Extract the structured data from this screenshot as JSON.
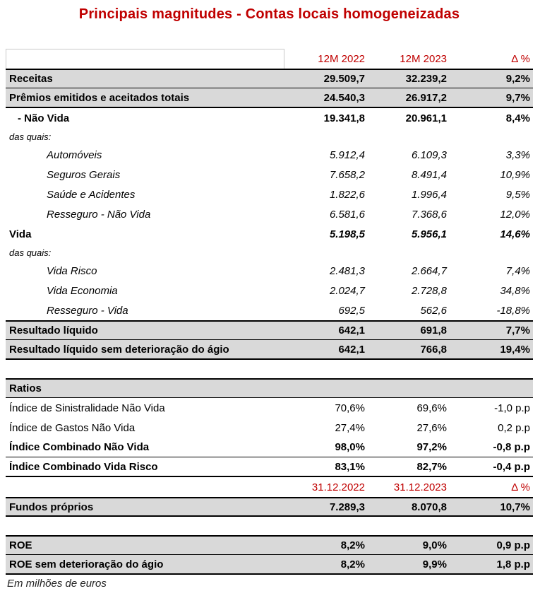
{
  "title": "Principais magnitudes - Contas locais homogeneizadas",
  "footnote": "Em milhões de euros",
  "colors": {
    "accent_red": "#C00000",
    "section_row_bg": "#D9D9D9",
    "border_black": "#000000"
  },
  "table": {
    "column_headers_period_1": [
      "12M 2022",
      "12M 2023",
      "Δ %"
    ],
    "column_headers_period_2": [
      "31.12.2022",
      "31.12.2023",
      "Δ %"
    ],
    "rows": [
      {
        "label": "",
        "v2022": "12M 2022",
        "v2023": "12M 2023",
        "delta": "Δ %",
        "style": "colheader first"
      },
      {
        "label": "Receitas",
        "v2022": "29.509,7",
        "v2023": "32.239,2",
        "delta": "9,2%",
        "style": "section bt2 bb1"
      },
      {
        "label": "Prêmios emitidos e aceitados totais",
        "v2022": "24.540,3",
        "v2023": "26.917,2",
        "delta": "9,7%",
        "style": "section bb2"
      },
      {
        "label": "- Não Vida",
        "v2022": "19.341,8",
        "v2023": "20.961,1",
        "delta": "8,4%",
        "style": "bold ind1"
      },
      {
        "label": "das quais:",
        "v2022": "",
        "v2023": "",
        "delta": "",
        "style": "note"
      },
      {
        "label": "Automóveis",
        "v2022": "5.912,4",
        "v2023": "6.109,3",
        "delta": "3,3%",
        "style": "italic ind2"
      },
      {
        "label": "Seguros Gerais",
        "v2022": "7.658,2",
        "v2023": "8.491,4",
        "delta": "10,9%",
        "style": "italic ind2"
      },
      {
        "label": "Saúde e Acidentes",
        "v2022": "1.822,6",
        "v2023": "1.996,4",
        "delta": "9,5%",
        "style": "italic ind2"
      },
      {
        "label": "Resseguro - Não Vida",
        "v2022": "6.581,6",
        "v2023": "7.368,6",
        "delta": "12,0%",
        "style": "italic ind2"
      },
      {
        "label": "Vida",
        "v2022": "5.198,5",
        "v2023": "5.956,1",
        "delta": "14,6%",
        "style": "vida"
      },
      {
        "label": "das quais:",
        "v2022": "",
        "v2023": "",
        "delta": "",
        "style": "note"
      },
      {
        "label": "Vida Risco",
        "v2022": "2.481,3",
        "v2023": "2.664,7",
        "delta": "7,4%",
        "style": "italic ind2"
      },
      {
        "label": "Vida Economia",
        "v2022": "2.024,7",
        "v2023": "2.728,8",
        "delta": "34,8%",
        "style": "italic ind2"
      },
      {
        "label": "Resseguro - Vida",
        "v2022": "692,5",
        "v2023": "562,6",
        "delta": "-18,8%",
        "style": "italic ind2"
      },
      {
        "label": "Resultado líquido",
        "v2022": "642,1",
        "v2023": "691,8",
        "delta": "7,7%",
        "style": "section bt2 bb1"
      },
      {
        "label": "Resultado líquido sem deterioração do ágio",
        "v2022": "642,1",
        "v2023": "766,8",
        "delta": "19,4%",
        "style": "section bb2"
      },
      {
        "label": "",
        "v2022": "",
        "v2023": "",
        "delta": "",
        "style": "spacer"
      },
      {
        "label": "Ratios",
        "v2022": "",
        "v2023": "",
        "delta": "",
        "style": "section bt2 bb1"
      },
      {
        "label": "Índice de Sinistralidade Não Vida",
        "v2022": "70,6%",
        "v2023": "69,6%",
        "delta": "-1,0 p.p",
        "style": "plain"
      },
      {
        "label": "Índice de Gastos Não Vida",
        "v2022": "27,4%",
        "v2023": "27,6%",
        "delta": "0,2 p.p",
        "style": "plain"
      },
      {
        "label": "Índice Combinado Não Vida",
        "v2022": "98,0%",
        "v2023": "97,2%",
        "delta": "-0,8 p.p",
        "style": "bold bb1"
      },
      {
        "label": "Índice Combinado Vida Risco",
        "v2022": "83,1%",
        "v2023": "82,7%",
        "delta": "-0,4 p.p",
        "style": "bold bb2"
      },
      {
        "label": "",
        "v2022": "31.12.2022",
        "v2023": "31.12.2023",
        "delta": "Δ %",
        "style": "colheader"
      },
      {
        "label": "Fundos próprios",
        "v2022": "7.289,3",
        "v2023": "8.070,8",
        "delta": "10,7%",
        "style": "section bt2 bb2"
      },
      {
        "label": "",
        "v2022": "",
        "v2023": "",
        "delta": "",
        "style": "spacer"
      },
      {
        "label": "ROE",
        "v2022": "8,2%",
        "v2023": "9,0%",
        "delta": "0,9 p.p",
        "style": "section bt2 bb1"
      },
      {
        "label": "ROE sem deterioração do ágio",
        "v2022": "8,2%",
        "v2023": "9,9%",
        "delta": "1,8 p.p",
        "style": "section bb2"
      }
    ]
  }
}
